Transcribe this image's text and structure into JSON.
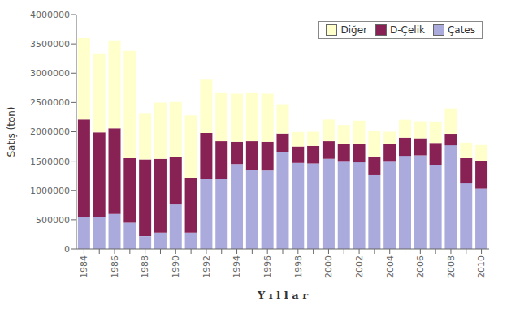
{
  "chart_data": {
    "type": "bar",
    "stacked": true,
    "categories": [
      "1984",
      null,
      "1986",
      null,
      "1988",
      null,
      "1990",
      null,
      "1992",
      null,
      "1994",
      null,
      "1996",
      null,
      "1998",
      null,
      "2000",
      null,
      "2002",
      null,
      "2004",
      null,
      "2006",
      null,
      "2008",
      null,
      "2010"
    ],
    "series": [
      {
        "name": "Çates",
        "color": "#aaaadd",
        "values": [
          550000,
          550000,
          600000,
          450000,
          220000,
          280000,
          760000,
          280000,
          1190000,
          1190000,
          1450000,
          1350000,
          1340000,
          1650000,
          1470000,
          1460000,
          1540000,
          1490000,
          1480000,
          1260000,
          1490000,
          1590000,
          1600000,
          1430000,
          1770000,
          1120000,
          1030000
        ]
      },
      {
        "name": "D-Çelik",
        "color": "#882255",
        "values": [
          1660000,
          1440000,
          1460000,
          1100000,
          1310000,
          1260000,
          810000,
          930000,
          790000,
          650000,
          380000,
          490000,
          490000,
          320000,
          280000,
          300000,
          300000,
          310000,
          310000,
          320000,
          300000,
          310000,
          290000,
          380000,
          195000,
          430000,
          465000
        ]
      },
      {
        "name": "Diğer",
        "color": "#ffffcc",
        "values": [
          1390000,
          1350000,
          1500000,
          1830000,
          790000,
          960000,
          940000,
          1070000,
          910000,
          820000,
          820000,
          820000,
          820000,
          500000,
          245000,
          240000,
          370000,
          315000,
          400000,
          430000,
          210000,
          305000,
          290000,
          365000,
          435000,
          265000,
          280000
        ]
      }
    ],
    "xlabel": "Y ı l l a r",
    "ylabel": "Satış  (ton)",
    "ylim": [
      0,
      4000000
    ],
    "yticks": [
      0,
      500000,
      1000000,
      1500000,
      2000000,
      2500000,
      3000000,
      3500000,
      4000000
    ],
    "legend": "upper right",
    "grid": false
  }
}
